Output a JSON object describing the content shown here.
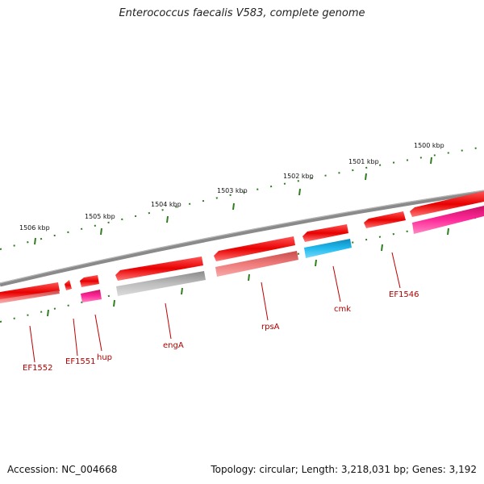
{
  "title": "Enterococcus faecalis V583, complete genome",
  "footer": {
    "accession": "Accession: NC_004668",
    "summary": "Topology: circular; Length: 3,218,031 bp; Genes: 3,192"
  },
  "kbp_labels": [
    "1506 kbp",
    "1505 kbp",
    "1504 kbp",
    "1503 kbp",
    "1502 kbp",
    "1501 kbp",
    "1500 kbp"
  ],
  "gene_labels": [
    "EF1552",
    "EF1551",
    "hup",
    "engA",
    "rpsA",
    "cmk",
    "EF1546"
  ],
  "colors": {
    "backbone": "#7f7f7f",
    "tick": "#2e7d1e",
    "cds_red": "#ee1111",
    "cds_magenta": "#ee2288",
    "cds_grey": "#b4b4b4",
    "cds_salmon": "#ee7777",
    "cds_cyan": "#22aadd",
    "label": "#b00000"
  }
}
